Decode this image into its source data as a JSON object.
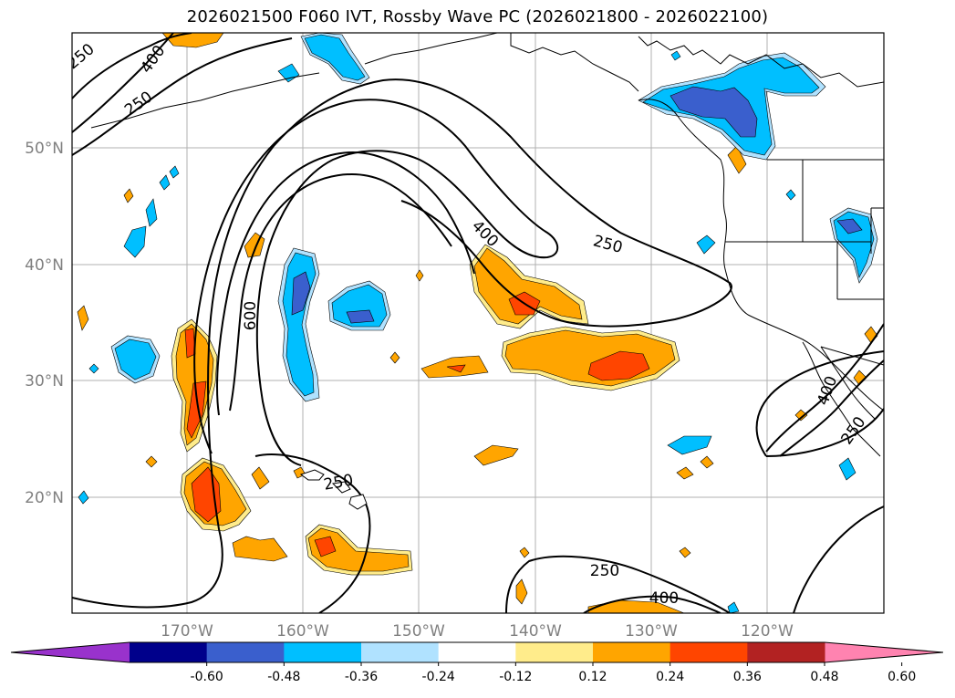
{
  "title": "2026021500 F060 IVT, Rossby Wave PC (2026021800 - 2026022100)",
  "map": {
    "lat_labels": [
      "50°N",
      "40°N",
      "30°N",
      "20°N"
    ],
    "lon_labels": [
      "170°W",
      "160°W",
      "150°W",
      "140°W",
      "130°W",
      "120°W"
    ],
    "contour_labels": [
      "250",
      "400",
      "250",
      "400",
      "600",
      "250",
      "250",
      "250",
      "400",
      "400",
      "250"
    ]
  },
  "colorbar": {
    "levels": [
      "-0.60",
      "-0.48",
      "-0.36",
      "-0.24",
      "-0.12",
      "0.12",
      "0.24",
      "0.36",
      "0.48",
      "0.60"
    ],
    "colors": [
      "#9932cc",
      "#00008b",
      "#3a5fcd",
      "#00bfff",
      "#b0e2ff",
      "#ffffff",
      "#ffec8b",
      "#ffa500",
      "#ff4500",
      "#b22222",
      "#ff83b0"
    ]
  }
}
